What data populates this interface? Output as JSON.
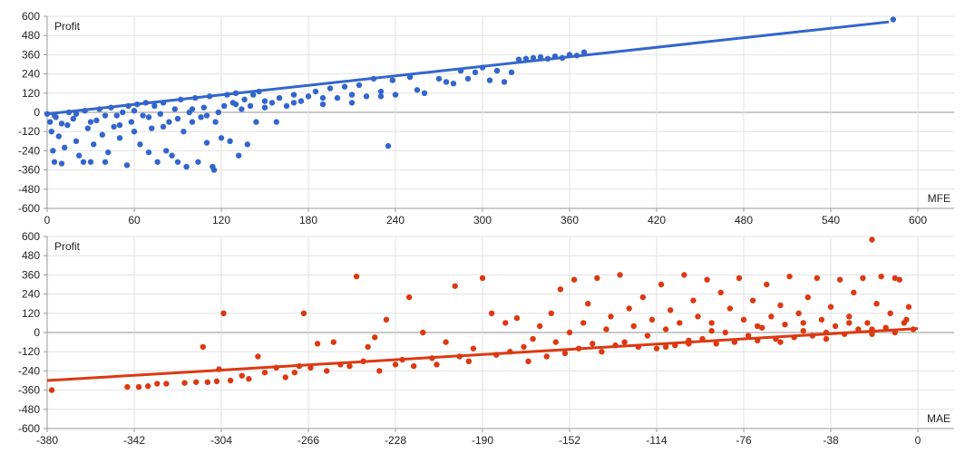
{
  "chart_data": [
    {
      "type": "scatter",
      "ylabel": "Profit",
      "xlabel": "MFE",
      "xlim": [
        0,
        625
      ],
      "ylim": [
        -600,
        600
      ],
      "xticks": [
        0,
        60,
        120,
        180,
        240,
        300,
        360,
        420,
        480,
        540,
        600
      ],
      "yticks": [
        600,
        480,
        360,
        240,
        120,
        0,
        -120,
        -240,
        -360,
        -480,
        -600
      ],
      "color": "#3366cc",
      "grid": true,
      "trendline": [
        [
          0,
          -10
        ],
        [
          580,
          565
        ]
      ],
      "points": [
        [
          0,
          -10
        ],
        [
          2,
          -60
        ],
        [
          3,
          -120
        ],
        [
          4,
          -240
        ],
        [
          5,
          -310
        ],
        [
          6,
          -30
        ],
        [
          8,
          -150
        ],
        [
          10,
          -320
        ],
        [
          12,
          -220
        ],
        [
          14,
          -80
        ],
        [
          15,
          0
        ],
        [
          18,
          -40
        ],
        [
          20,
          -180
        ],
        [
          22,
          -270
        ],
        [
          25,
          -310
        ],
        [
          26,
          10
        ],
        [
          28,
          -100
        ],
        [
          30,
          -310
        ],
        [
          32,
          -200
        ],
        [
          34,
          -50
        ],
        [
          36,
          20
        ],
        [
          38,
          -140
        ],
        [
          40,
          -310
        ],
        [
          42,
          -250
        ],
        [
          44,
          30
        ],
        [
          46,
          -90
        ],
        [
          48,
          -20
        ],
        [
          50,
          -160
        ],
        [
          52,
          0
        ],
        [
          55,
          -330
        ],
        [
          56,
          40
        ],
        [
          58,
          -60
        ],
        [
          60,
          -120
        ],
        [
          62,
          50
        ],
        [
          64,
          -200
        ],
        [
          66,
          -20
        ],
        [
          68,
          60
        ],
        [
          70,
          -250
        ],
        [
          72,
          -100
        ],
        [
          74,
          40
        ],
        [
          76,
          -310
        ],
        [
          78,
          -10
        ],
        [
          80,
          60
        ],
        [
          82,
          -240
        ],
        [
          84,
          -60
        ],
        [
          86,
          -270
        ],
        [
          88,
          20
        ],
        [
          90,
          -310
        ],
        [
          92,
          80
        ],
        [
          94,
          -120
        ],
        [
          96,
          -340
        ],
        [
          98,
          0
        ],
        [
          100,
          -60
        ],
        [
          102,
          90
        ],
        [
          104,
          -310
        ],
        [
          106,
          -30
        ],
        [
          108,
          30
        ],
        [
          110,
          -190
        ],
        [
          112,
          100
        ],
        [
          114,
          -340
        ],
        [
          115,
          -360
        ],
        [
          116,
          -60
        ],
        [
          118,
          0
        ],
        [
          120,
          -160
        ],
        [
          122,
          40
        ],
        [
          124,
          110
        ],
        [
          126,
          -180
        ],
        [
          128,
          60
        ],
        [
          130,
          120
        ],
        [
          132,
          -270
        ],
        [
          134,
          20
        ],
        [
          136,
          80
        ],
        [
          138,
          -200
        ],
        [
          140,
          40
        ],
        [
          142,
          110
        ],
        [
          144,
          -60
        ],
        [
          146,
          130
        ],
        [
          150,
          30
        ],
        [
          155,
          60
        ],
        [
          158,
          -60
        ],
        [
          160,
          90
        ],
        [
          165,
          40
        ],
        [
          170,
          110
        ],
        [
          175,
          70
        ],
        [
          180,
          100
        ],
        [
          185,
          130
        ],
        [
          190,
          50
        ],
        [
          195,
          150
        ],
        [
          200,
          90
        ],
        [
          205,
          160
        ],
        [
          210,
          60
        ],
        [
          215,
          170
        ],
        [
          220,
          100
        ],
        [
          225,
          210
        ],
        [
          230,
          130
        ],
        [
          235,
          -210
        ],
        [
          238,
          200
        ],
        [
          240,
          110
        ],
        [
          250,
          220
        ],
        [
          255,
          140
        ],
        [
          260,
          120
        ],
        [
          270,
          210
        ],
        [
          275,
          190
        ],
        [
          280,
          180
        ],
        [
          285,
          260
        ],
        [
          290,
          210
        ],
        [
          295,
          250
        ],
        [
          300,
          280
        ],
        [
          305,
          200
        ],
        [
          310,
          260
        ],
        [
          315,
          190
        ],
        [
          320,
          250
        ],
        [
          325,
          330
        ],
        [
          330,
          335
        ],
        [
          335,
          340
        ],
        [
          340,
          345
        ],
        [
          345,
          335
        ],
        [
          350,
          350
        ],
        [
          355,
          340
        ],
        [
          360,
          360
        ],
        [
          365,
          355
        ],
        [
          370,
          375
        ],
        [
          583,
          580
        ],
        [
          5,
          -20
        ],
        [
          10,
          -70
        ],
        [
          20,
          -10
        ],
        [
          30,
          -60
        ],
        [
          40,
          -20
        ],
        [
          50,
          -80
        ],
        [
          60,
          10
        ],
        [
          70,
          -30
        ],
        [
          80,
          -90
        ],
        [
          90,
          -40
        ],
        [
          100,
          20
        ],
        [
          110,
          -20
        ],
        [
          130,
          50
        ],
        [
          150,
          70
        ],
        [
          170,
          60
        ],
        [
          190,
          90
        ],
        [
          210,
          110
        ],
        [
          230,
          100
        ]
      ]
    },
    {
      "type": "scatter",
      "ylabel": "Profit",
      "xlabel": "MAE",
      "xlim": [
        -380,
        15
      ],
      "ylim": [
        -600,
        600
      ],
      "xticks": [
        -380,
        -342,
        -304,
        -266,
        -228,
        -190,
        -152,
        -114,
        -76,
        -38,
        0
      ],
      "yticks": [
        600,
        480,
        360,
        240,
        120,
        0,
        -120,
        -240,
        -360,
        -480,
        -600
      ],
      "color": "#dc3912",
      "grid": true,
      "trendline": [
        [
          -380,
          -300
        ],
        [
          0,
          25
        ]
      ],
      "points": [
        [
          -378,
          -360
        ],
        [
          -345,
          -340
        ],
        [
          -340,
          -340
        ],
        [
          -336,
          -335
        ],
        [
          -332,
          -320
        ],
        [
          -328,
          -320
        ],
        [
          -320,
          -315
        ],
        [
          -315,
          -310
        ],
        [
          -312,
          -90
        ],
        [
          -310,
          -310
        ],
        [
          -306,
          -305
        ],
        [
          -305,
          -230
        ],
        [
          -303,
          120
        ],
        [
          -300,
          -300
        ],
        [
          -295,
          -270
        ],
        [
          -292,
          -290
        ],
        [
          -288,
          -150
        ],
        [
          -285,
          -250
        ],
        [
          -280,
          -220
        ],
        [
          -276,
          -280
        ],
        [
          -272,
          -250
        ],
        [
          -270,
          -210
        ],
        [
          -268,
          120
        ],
        [
          -265,
          -220
        ],
        [
          -262,
          -70
        ],
        [
          -258,
          -240
        ],
        [
          -255,
          -60
        ],
        [
          -252,
          -200
        ],
        [
          -248,
          -210
        ],
        [
          -245,
          350
        ],
        [
          -242,
          -180
        ],
        [
          -240,
          -90
        ],
        [
          -237,
          -30
        ],
        [
          -235,
          -240
        ],
        [
          -232,
          80
        ],
        [
          -228,
          -200
        ],
        [
          -225,
          -170
        ],
        [
          -222,
          220
        ],
        [
          -220,
          -210
        ],
        [
          -216,
          0
        ],
        [
          -212,
          -160
        ],
        [
          -210,
          -200
        ],
        [
          -206,
          -60
        ],
        [
          -202,
          290
        ],
        [
          -200,
          -150
        ],
        [
          -196,
          -180
        ],
        [
          -194,
          -100
        ],
        [
          -190,
          340
        ],
        [
          -186,
          120
        ],
        [
          -184,
          -140
        ],
        [
          -180,
          60
        ],
        [
          -178,
          -120
        ],
        [
          -175,
          90
        ],
        [
          -172,
          -90
        ],
        [
          -170,
          -180
        ],
        [
          -168,
          -40
        ],
        [
          -165,
          40
        ],
        [
          -162,
          -150
        ],
        [
          -160,
          120
        ],
        [
          -158,
          -60
        ],
        [
          -156,
          270
        ],
        [
          -154,
          -130
        ],
        [
          -152,
          0
        ],
        [
          -150,
          330
        ],
        [
          -148,
          -100
        ],
        [
          -146,
          60
        ],
        [
          -144,
          180
        ],
        [
          -142,
          -70
        ],
        [
          -140,
          340
        ],
        [
          -138,
          -120
        ],
        [
          -136,
          20
        ],
        [
          -134,
          100
        ],
        [
          -132,
          -80
        ],
        [
          -130,
          360
        ],
        [
          -128,
          -60
        ],
        [
          -126,
          150
        ],
        [
          -124,
          40
        ],
        [
          -122,
          -90
        ],
        [
          -120,
          220
        ],
        [
          -118,
          -20
        ],
        [
          -116,
          80
        ],
        [
          -114,
          -100
        ],
        [
          -112,
          300
        ],
        [
          -110,
          20
        ],
        [
          -108,
          140
        ],
        [
          -106,
          -80
        ],
        [
          -104,
          60
        ],
        [
          -102,
          360
        ],
        [
          -100,
          -50
        ],
        [
          -98,
          200
        ],
        [
          -96,
          100
        ],
        [
          -94,
          -40
        ],
        [
          -92,
          330
        ],
        [
          -90,
          60
        ],
        [
          -88,
          -70
        ],
        [
          -86,
          250
        ],
        [
          -84,
          0
        ],
        [
          -82,
          150
        ],
        [
          -80,
          -60
        ],
        [
          -78,
          340
        ],
        [
          -76,
          80
        ],
        [
          -74,
          -20
        ],
        [
          -72,
          200
        ],
        [
          -70,
          -50
        ],
        [
          -68,
          30
        ],
        [
          -66,
          300
        ],
        [
          -64,
          100
        ],
        [
          -62,
          -40
        ],
        [
          -60,
          170
        ],
        [
          -58,
          50
        ],
        [
          -56,
          350
        ],
        [
          -54,
          -30
        ],
        [
          -52,
          120
        ],
        [
          -50,
          10
        ],
        [
          -48,
          220
        ],
        [
          -46,
          -20
        ],
        [
          -44,
          340
        ],
        [
          -42,
          80
        ],
        [
          -40,
          0
        ],
        [
          -38,
          160
        ],
        [
          -36,
          40
        ],
        [
          -34,
          330
        ],
        [
          -32,
          -10
        ],
        [
          -30,
          100
        ],
        [
          -28,
          250
        ],
        [
          -26,
          20
        ],
        [
          -24,
          340
        ],
        [
          -22,
          60
        ],
        [
          -20,
          -10
        ],
        [
          -18,
          180
        ],
        [
          -16,
          350
        ],
        [
          -14,
          30
        ],
        [
          -12,
          120
        ],
        [
          -10,
          0
        ],
        [
          -8,
          330
        ],
        [
          -6,
          60
        ],
        [
          -4,
          160
        ],
        [
          -2,
          20
        ],
        [
          -20,
          580
        ],
        [
          -10,
          340
        ],
        [
          -30,
          60
        ],
        [
          -50,
          60
        ],
        [
          -70,
          40
        ],
        [
          -90,
          10
        ],
        [
          -110,
          -90
        ],
        [
          -100,
          -70
        ],
        [
          -60,
          -60
        ],
        [
          -40,
          -40
        ],
        [
          -20,
          20
        ],
        [
          -5,
          80
        ]
      ]
    }
  ]
}
